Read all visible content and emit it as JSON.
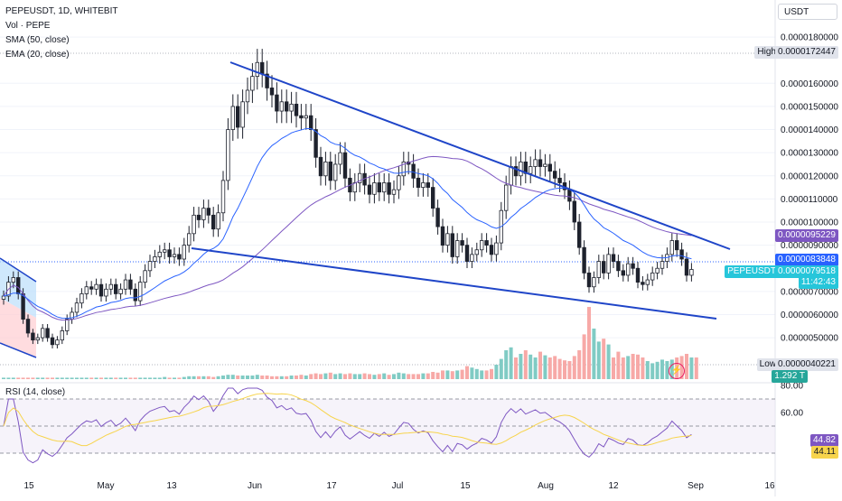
{
  "legend": {
    "symbol": "PEPEUSDT, 1D, WHITEBIT",
    "vol": "Vol · PEPE",
    "sma": "SMA (50, close)",
    "ema": "EMA (20, close)",
    "rsi": "RSI (14, close)"
  },
  "axis": {
    "unit": "USDT",
    "price_ticks": [
      "0.0000180000",
      "0.0000160000",
      "0.0000150000",
      "0.0000140000",
      "0.0000130000",
      "0.0000120000",
      "0.0000110000",
      "0.0000100000",
      "0.0000090000",
      "0.0000070000",
      "0.0000060000",
      "0.0000050000"
    ],
    "rsi_ticks": [
      "80.00",
      "60.00"
    ],
    "x_ticks": [
      "15",
      "May",
      "13",
      "Jun",
      "17",
      "Jul",
      "15",
      "Aug",
      "12",
      "Sep",
      "16"
    ]
  },
  "markers": {
    "high_label": "High",
    "high_value": "0.0000172447",
    "low_label": "Low",
    "low_value": "0.0000040221",
    "sma_value": "0.0000095229",
    "ema_value": "0.0000083848",
    "symbol_label": "PEPEUSDT",
    "last_value": "0.0000079518",
    "countdown": "11:42:43",
    "volume_value": "1.292 T",
    "rsi_value": "44.82",
    "rsi_ma_value": "44.11"
  },
  "colors": {
    "up": "#26a69a",
    "down": "#ef5350",
    "sma": "#7e57c2",
    "ema": "#2962ff",
    "trendline": "#1f45c8",
    "rsi": "#7e57c2",
    "rsi_ma": "#f7d44c"
  },
  "chart_data": {
    "type": "candlestick",
    "interval": "1D",
    "y_scale": "price",
    "x_start": "2024-04-09",
    "x_end": "2024-08-28",
    "high": 1.72447e-05,
    "low": 4.0221e-06,
    "last": 7.9518e-06,
    "closes": [
      6.8e-06,
      7.4e-06,
      7.6e-06,
      6.9e-06,
      5.8e-06,
      5.2e-06,
      4.9e-06,
      5e-06,
      5.4e-06,
      5e-06,
      4.7e-06,
      4.9e-06,
      5.3e-06,
      5.8e-06,
      6.1e-06,
      6.5e-06,
      6.9e-06,
      7.2e-06,
      7.1e-06,
      7.3e-06,
      6.8e-06,
      7.1e-06,
      7.3e-06,
      6.9e-06,
      7.1e-06,
      7.5e-06,
      7.1e-06,
      6.6e-06,
      7.4e-06,
      7.9e-06,
      8.3e-06,
      8.5e-06,
      8.7e-06,
      8.8e-06,
      8.5e-06,
      8.6e-06,
      8.4e-06,
      9e-06,
      9.5e-06,
      1.03e-05,
      1.01e-05,
      1.06e-05,
      1.03e-05,
      9.7e-06,
      1.04e-05,
      1.18e-05,
      1.4e-05,
      1.5e-05,
      1.41e-05,
      1.52e-05,
      1.57e-05,
      1.63e-05,
      1.69e-05,
      1.64e-05,
      1.58e-05,
      1.55e-05,
      1.48e-05,
      1.52e-05,
      1.48e-05,
      1.51e-05,
      1.46e-05,
      1.45e-05,
      1.46e-05,
      1.4e-05,
      1.28e-05,
      1.2e-05,
      1.26e-05,
      1.18e-05,
      1.25e-05,
      1.3e-05,
      1.19e-05,
      1.13e-05,
      1.17e-05,
      1.21e-05,
      1.16e-05,
      1.12e-05,
      1.17e-05,
      1.13e-05,
      1.17e-05,
      1.12e-05,
      1.14e-05,
      1.2e-05,
      1.26e-05,
      1.25e-05,
      1.19e-05,
      1.15e-05,
      1.17e-05,
      1.15e-05,
      1.06e-05,
      9.8e-06,
      9e-06,
      9.5e-06,
      8.5e-06,
      9.2e-06,
      9e-06,
      8.3e-06,
      8.6e-06,
      8.8e-06,
      9.2e-06,
      9e-06,
      8.6e-06,
      9.1e-06,
      1.05e-05,
      1.16e-05,
      1.24e-05,
      1.2e-05,
      1.26e-05,
      1.21e-05,
      1.24e-05,
      1.27e-05,
      1.24e-05,
      1.25e-05,
      1.22e-05,
      1.19e-05,
      1.17e-05,
      1.14e-05,
      1.09e-05,
      1e-05,
      8.9e-06,
      7.8e-06,
      7.2e-06,
      7.6e-06,
      8.3e-06,
      7.8e-06,
      8.6e-06,
      8.3e-06,
      7.9e-06,
      7.7e-06,
      8.2e-06,
      8e-06,
      7.4e-06,
      7.3e-06,
      7.5e-06,
      7.8e-06,
      8e-06,
      8.3e-06,
      8.6e-06,
      9.2e-06,
      8.8e-06,
      8.4e-06,
      7.7e-06,
      7.9518e-06
    ],
    "volumes_relative": [
      0.02,
      0.02,
      0.02,
      0.02,
      0.02,
      0.02,
      0.02,
      0.02,
      0.02,
      0.02,
      0.02,
      0.02,
      0.02,
      0.02,
      0.02,
      0.02,
      0.02,
      0.02,
      0.02,
      0.02,
      0.02,
      0.02,
      0.02,
      0.02,
      0.02,
      0.02,
      0.02,
      0.02,
      0.02,
      0.02,
      0.02,
      0.02,
      0.02,
      0.03,
      0.02,
      0.02,
      0.02,
      0.03,
      0.04,
      0.04,
      0.04,
      0.04,
      0.04,
      0.03,
      0.04,
      0.05,
      0.06,
      0.06,
      0.05,
      0.05,
      0.05,
      0.05,
      0.06,
      0.05,
      0.05,
      0.04,
      0.04,
      0.04,
      0.04,
      0.05,
      0.05,
      0.06,
      0.05,
      0.07,
      0.08,
      0.07,
      0.08,
      0.09,
      0.07,
      0.08,
      0.07,
      0.08,
      0.07,
      0.07,
      0.08,
      0.07,
      0.06,
      0.07,
      0.08,
      0.06,
      0.07,
      0.09,
      0.08,
      0.07,
      0.07,
      0.07,
      0.08,
      0.08,
      0.1,
      0.09,
      0.12,
      0.12,
      0.11,
      0.12,
      0.13,
      0.18,
      0.16,
      0.14,
      0.12,
      0.12,
      0.14,
      0.2,
      0.28,
      0.4,
      0.44,
      0.3,
      0.35,
      0.4,
      0.34,
      0.3,
      0.38,
      0.33,
      0.3,
      0.32,
      0.28,
      0.26,
      0.25,
      0.32,
      0.4,
      0.62,
      1.0,
      0.7,
      0.52,
      0.56,
      0.48,
      0.3,
      0.38,
      0.3,
      0.32,
      0.35,
      0.34,
      0.3,
      0.25,
      0.22,
      0.24,
      0.27,
      0.25,
      0.27,
      0.3,
      0.32,
      0.35,
      0.3,
      0.3
    ],
    "rsi_ma_20": 44.11,
    "rsi_14": 44.82,
    "rsi_levels": [
      70,
      50,
      30
    ],
    "sma_50_last": 9.5229e-06,
    "ema_20_last": 8.3848e-06,
    "trendlines": [
      {
        "name": "upper",
        "from": [
          "2024-05-27",
          1.72e-05
        ],
        "to": [
          "2024-09-02",
          9e-06
        ]
      },
      {
        "name": "lower",
        "from": [
          "2024-05-13",
          8.9e-06
        ],
        "to": [
          "2024-09-02",
          6.1e-06
        ]
      }
    ]
  }
}
